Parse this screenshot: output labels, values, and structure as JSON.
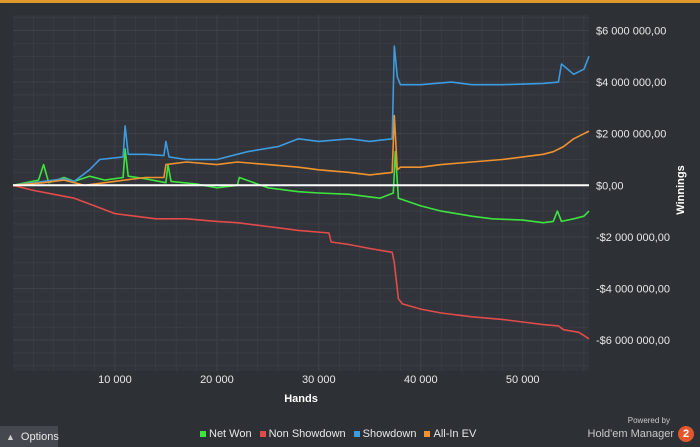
{
  "colors": {
    "net_won": "#3ee43e",
    "non_showdown": "#e24b4b",
    "showdown": "#3d9be0",
    "all_in_ev": "#f0922e",
    "zero_line": "#ffffff",
    "grid": "#3e4248",
    "accent": "#e09a2c"
  },
  "options": {
    "label": "Options",
    "icon": "chevron-up-icon"
  },
  "branding": {
    "powered_by": "Powered by",
    "name": "Hold'em Manager",
    "logo_text": "2"
  },
  "chart_data": {
    "type": "line",
    "xlabel": "Hands",
    "ylabel": "Winnings",
    "xlim": [
      0,
      56500
    ],
    "ylim": [
      -7200000,
      6600000
    ],
    "x_ticks": [
      {
        "value": 10000,
        "label": "10 000"
      },
      {
        "value": 20000,
        "label": "20 000"
      },
      {
        "value": 30000,
        "label": "30 000"
      },
      {
        "value": 40000,
        "label": "40 000"
      },
      {
        "value": 50000,
        "label": "50 000"
      }
    ],
    "y_ticks": [
      {
        "value": 6000000,
        "label": "$6 000 000,00"
      },
      {
        "value": 4000000,
        "label": "$4 000 000,00"
      },
      {
        "value": 2000000,
        "label": "$2 000 000,00"
      },
      {
        "value": 0,
        "label": "$0,00"
      },
      {
        "value": -2000000,
        "label": "-$2 000 000,00"
      },
      {
        "value": -4000000,
        "label": "-$4 000 000,00"
      },
      {
        "value": -6000000,
        "label": "-$6 000 000,00"
      }
    ],
    "grid": true,
    "legend_position": "bottom",
    "series": [
      {
        "name": "Net Won",
        "color_key": "net_won",
        "x": [
          0,
          2500,
          3000,
          3500,
          5000,
          6000,
          7500,
          9000,
          10800,
          11000,
          11300,
          13000,
          15000,
          15200,
          15500,
          18000,
          20000,
          22000,
          22200,
          25000,
          28000,
          30000,
          33000,
          36000,
          37300,
          37500,
          37800,
          40000,
          42000,
          45000,
          47000,
          50000,
          52000,
          53000,
          53400,
          53800,
          55000,
          56000,
          56500
        ],
        "y": [
          0,
          200000,
          800000,
          100000,
          300000,
          150000,
          350000,
          200000,
          300000,
          1400000,
          350000,
          250000,
          100000,
          800000,
          150000,
          50000,
          -100000,
          0,
          300000,
          -100000,
          -250000,
          -300000,
          -350000,
          -500000,
          -300000,
          1300000,
          -500000,
          -800000,
          -1000000,
          -1200000,
          -1300000,
          -1350000,
          -1450000,
          -1400000,
          -1000000,
          -1400000,
          -1300000,
          -1200000,
          -1000000
        ]
      },
      {
        "name": "Non Showdown",
        "color_key": "non_showdown",
        "x": [
          0,
          2000,
          4000,
          6000,
          8000,
          10000,
          12000,
          14000,
          17000,
          20000,
          22000,
          25000,
          28000,
          31000,
          31200,
          33000,
          35000,
          37200,
          37400,
          37800,
          38200,
          40000,
          42000,
          45000,
          48000,
          50000,
          52000,
          53500,
          54000,
          55500,
          56500
        ],
        "y": [
          0,
          -200000,
          -350000,
          -500000,
          -800000,
          -1100000,
          -1200000,
          -1300000,
          -1300000,
          -1400000,
          -1450000,
          -1600000,
          -1750000,
          -1850000,
          -2200000,
          -2300000,
          -2450000,
          -2600000,
          -3000000,
          -4400000,
          -4600000,
          -4800000,
          -4950000,
          -5100000,
          -5200000,
          -5300000,
          -5400000,
          -5450000,
          -5600000,
          -5700000,
          -5950000
        ]
      },
      {
        "name": "Showdown",
        "color_key": "showdown",
        "x": [
          0,
          3000,
          5000,
          6000,
          7500,
          8500,
          10800,
          11000,
          11300,
          13000,
          14800,
          15000,
          15300,
          17000,
          20000,
          23000,
          26000,
          28000,
          30000,
          33000,
          35000,
          37200,
          37400,
          37700,
          38000,
          40000,
          43000,
          45000,
          48000,
          52000,
          53500,
          53800,
          55000,
          56000,
          56500
        ],
        "y": [
          0,
          150000,
          250000,
          150000,
          600000,
          1000000,
          1100000,
          2300000,
          1200000,
          1200000,
          1150000,
          1700000,
          1100000,
          1000000,
          1000000,
          1300000,
          1500000,
          1800000,
          1700000,
          1800000,
          1700000,
          1800000,
          5400000,
          4200000,
          3900000,
          3900000,
          4000000,
          3900000,
          3900000,
          3950000,
          4000000,
          4700000,
          4300000,
          4500000,
          5000000
        ]
      },
      {
        "name": "All-In EV",
        "color_key": "all_in_ev",
        "x": [
          0,
          3000,
          5000,
          7000,
          9000,
          11000,
          13000,
          14800,
          15000,
          17000,
          20000,
          22000,
          25000,
          28000,
          30000,
          33000,
          35000,
          37200,
          37400,
          37700,
          38000,
          40000,
          42000,
          45000,
          48000,
          50000,
          52000,
          53000,
          54000,
          55000,
          56000,
          56500
        ],
        "y": [
          0,
          100000,
          200000,
          0,
          100000,
          200000,
          300000,
          300000,
          800000,
          900000,
          800000,
          900000,
          800000,
          700000,
          600000,
          500000,
          400000,
          500000,
          2700000,
          600000,
          700000,
          700000,
          800000,
          900000,
          1000000,
          1100000,
          1200000,
          1300000,
          1500000,
          1800000,
          2000000,
          2100000
        ]
      }
    ]
  }
}
